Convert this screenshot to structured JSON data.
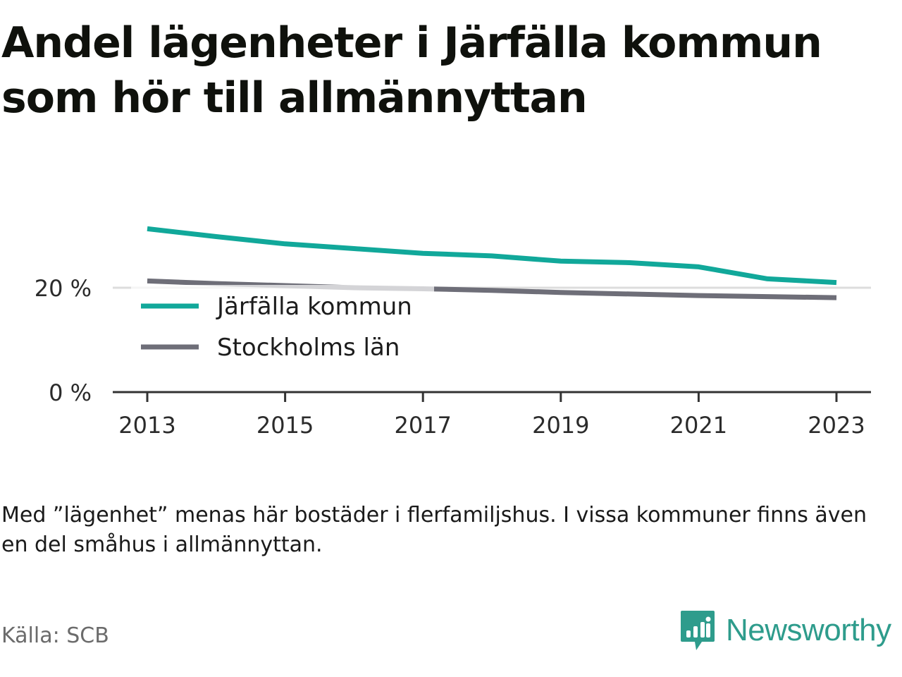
{
  "title": "Andel lägenheter i Järfälla kommun som hör till allmännyttan",
  "note": "Med ”lägenhet” menas här bostäder i flerfamiljshus. I vissa kommuner finns även en del småhus i allmännyttan.",
  "source": "Källa: SCB",
  "brand": {
    "name": "Newsworthy",
    "icon": "newsworthy-logo-icon"
  },
  "colors": {
    "jarfalla": "#11a89a",
    "stockholm": "#6e6e78",
    "axis": "#333333",
    "grid": "#dddddd"
  },
  "chart_data": {
    "type": "line",
    "x": [
      2013,
      2014,
      2015,
      2016,
      2017,
      2018,
      2019,
      2020,
      2021,
      2022,
      2023
    ],
    "series": [
      {
        "name": "Järfälla kommun",
        "color": "#11a89a",
        "values": [
          31.3,
          29.8,
          28.4,
          27.5,
          26.6,
          26.1,
          25.1,
          24.8,
          24.0,
          21.7,
          21.0
        ]
      },
      {
        "name": "Stockholms län",
        "color": "#6e6e78",
        "values": [
          21.3,
          20.8,
          20.4,
          20.0,
          19.8,
          19.5,
          19.1,
          18.8,
          18.5,
          18.3,
          18.1
        ]
      }
    ],
    "xticks": [
      "2013",
      "2015",
      "2017",
      "2019",
      "2021",
      "2023"
    ],
    "yticks": [
      {
        "value": 0,
        "label": "0 %"
      },
      {
        "value": 20,
        "label": "20 %"
      }
    ],
    "ylim": [
      0,
      40
    ],
    "gridlines": [
      20
    ],
    "legend": "left, inside plot below 20 % line"
  }
}
